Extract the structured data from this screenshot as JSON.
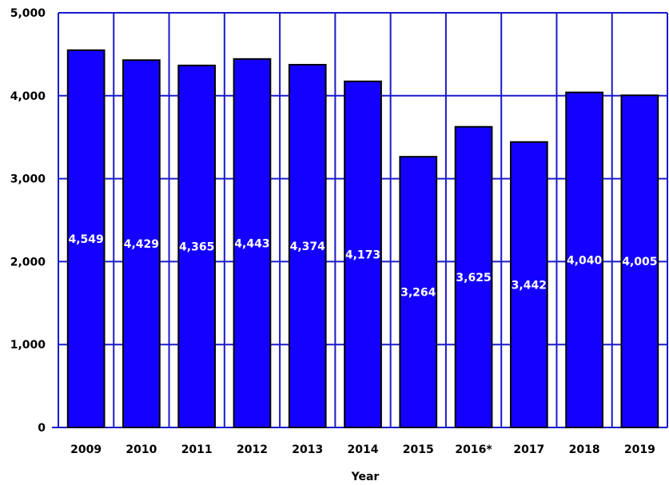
{
  "chart_data": {
    "type": "bar",
    "categories": [
      "2009",
      "2010",
      "2011",
      "2012",
      "2013",
      "2014",
      "2015",
      "2016*",
      "2017",
      "2018",
      "2019"
    ],
    "values": [
      4549,
      4429,
      4365,
      4443,
      4374,
      4173,
      3264,
      3625,
      3442,
      4040,
      4005
    ],
    "data_labels": [
      "4,549",
      "4,429",
      "4,365",
      "4,443",
      "4,374",
      "4,173",
      "3,264",
      "3,625",
      "3,442",
      "4,040",
      "4,005"
    ],
    "title": "",
    "xlabel": "Year",
    "ylabel": "",
    "ylim": [
      0,
      5000
    ],
    "yticks": [
      0,
      1000,
      2000,
      3000,
      4000,
      5000
    ],
    "ytick_labels": [
      "0",
      "1,000",
      "2,000",
      "3,000",
      "4,000",
      "5,000"
    ],
    "grid": true,
    "legend": "none"
  },
  "colors": {
    "bar_fill": "#1400ff",
    "bar_stroke": "#000000",
    "grid": "#1a1acc",
    "axis": "#1a1acc",
    "data_label": "#ffffff",
    "text": "#000000"
  }
}
